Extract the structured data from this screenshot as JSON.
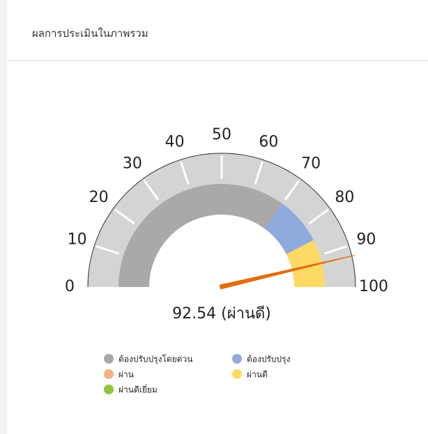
{
  "header": {
    "title": "ผลการประเมินในภาพรวม"
  },
  "chart_data": {
    "type": "gauge",
    "value": 92.54,
    "value_label": "92.54 (ผ่านดี)",
    "needle_color": "#e36c0a",
    "xlim": [
      0,
      100
    ],
    "xticks": [
      0,
      10,
      20,
      30,
      40,
      50,
      60,
      70,
      80,
      90,
      100
    ],
    "bands": [
      {
        "from": 0,
        "to": 70,
        "color": "#aba8a8"
      },
      {
        "from": 70,
        "to": 85,
        "color": "#8faadc"
      },
      {
        "from": 85,
        "to": 100,
        "color": "#ffd966"
      }
    ],
    "legend": [
      {
        "name": "ต้องปรับปรุงโดยด่วน",
        "color": "#aba8a8"
      },
      {
        "name": "ต้องปรับปรุง",
        "color": "#8faadc"
      },
      {
        "name": "ผ่าน",
        "color": "#f4b183"
      },
      {
        "name": "ผ่านดี",
        "color": "#ffd966"
      },
      {
        "name": "ผ่านดีเยี่ยม",
        "color": "#8dc63f"
      }
    ]
  }
}
